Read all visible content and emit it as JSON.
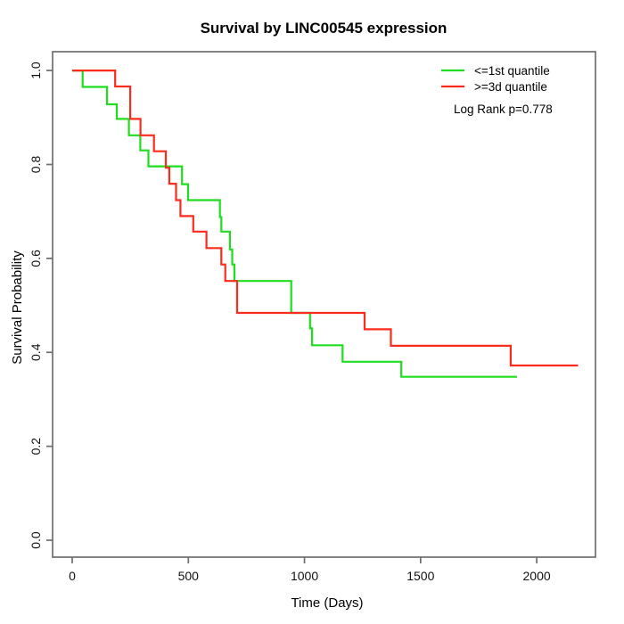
{
  "chart_data": {
    "type": "line",
    "variant": "kaplan-meier-survival-step",
    "title": "Survival by LINC00545 expression",
    "xlabel": "Time (Days)",
    "ylabel": "Survival Probability",
    "x_ticks": [
      0,
      500,
      1000,
      1500,
      2000
    ],
    "y_ticks": [
      0.0,
      0.2,
      0.4,
      0.6,
      0.8,
      1.0
    ],
    "y_tick_labels": [
      "0.0",
      "0.2",
      "0.4",
      "0.6",
      "0.8",
      "1.0"
    ],
    "xlim": [
      -84.5,
      2253
    ],
    "ylim": [
      -0.036,
      1.04
    ],
    "grid": false,
    "legend": {
      "position": "top-right",
      "entries": [
        {
          "label": "<=1st quantile",
          "color": "#1fdd1f"
        },
        {
          "label": ">=3d quantile",
          "color": "#fb2b1d"
        }
      ]
    },
    "annotation": "Log Rank p=0.778",
    "series": [
      {
        "name": "<=1st quantile",
        "color": "#1fdd1f",
        "end_time": 1915,
        "points": [
          [
            0,
            1.0
          ],
          [
            45,
            0.965
          ],
          [
            150,
            0.928
          ],
          [
            192,
            0.897
          ],
          [
            244,
            0.862
          ],
          [
            293,
            0.83
          ],
          [
            328,
            0.796
          ],
          [
            473,
            0.758
          ],
          [
            499,
            0.724
          ],
          [
            636,
            0.688
          ],
          [
            642,
            0.657
          ],
          [
            679,
            0.619
          ],
          [
            689,
            0.587
          ],
          [
            698,
            0.552
          ],
          [
            943,
            0.484
          ],
          [
            1024,
            0.451
          ],
          [
            1033,
            0.415
          ],
          [
            1164,
            0.38
          ],
          [
            1417,
            0.348
          ]
        ]
      },
      {
        "name": ">=3d quantile",
        "color": "#fb2b1d",
        "end_time": 2178,
        "points": [
          [
            0,
            1.0
          ],
          [
            185,
            0.966
          ],
          [
            250,
            0.897
          ],
          [
            294,
            0.862
          ],
          [
            352,
            0.828
          ],
          [
            403,
            0.793
          ],
          [
            418,
            0.759
          ],
          [
            447,
            0.724
          ],
          [
            466,
            0.69
          ],
          [
            521,
            0.657
          ],
          [
            578,
            0.622
          ],
          [
            642,
            0.587
          ],
          [
            659,
            0.552
          ],
          [
            710,
            0.484
          ],
          [
            1259,
            0.449
          ],
          [
            1372,
            0.414
          ],
          [
            1888,
            0.372
          ]
        ]
      }
    ],
    "frame_color": "#6e6e6e",
    "text_color": "#000000"
  }
}
